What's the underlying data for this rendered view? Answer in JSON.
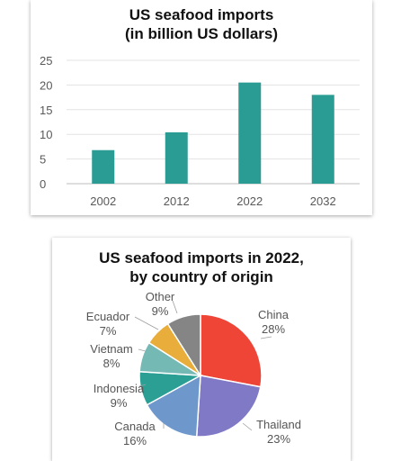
{
  "chart_data": [
    {
      "type": "bar",
      "title_lines": [
        "US seafood imports",
        "(in billion US dollars)"
      ],
      "categories": [
        "2002",
        "2012",
        "2022",
        "2032"
      ],
      "values": [
        6.8,
        10.4,
        20.5,
        18.0
      ],
      "ylim": [
        0,
        25
      ],
      "yticks": [
        "0",
        "5",
        "10",
        "15",
        "20",
        "25"
      ],
      "grid": true,
      "legend": "none",
      "bar_color": "#2a9c93"
    },
    {
      "type": "pie",
      "title_lines": [
        "US seafood imports in 2022,",
        "by country of origin"
      ],
      "slices": [
        {
          "label": "China",
          "value": 28,
          "value_label": "28%",
          "color": "#ef4537"
        },
        {
          "label": "Thailand",
          "value": 23,
          "value_label": "23%",
          "color": "#7f79c6"
        },
        {
          "label": "Canada",
          "value": 16,
          "value_label": "16%",
          "color": "#6e98cc"
        },
        {
          "label": "Indonesia",
          "value": 9,
          "value_label": "9%",
          "color": "#2c9f95"
        },
        {
          "label": "Vietnam",
          "value": 8,
          "value_label": "8%",
          "color": "#75b9b5"
        },
        {
          "label": "Ecuador",
          "value": 7,
          "value_label": "7%",
          "color": "#e8ad3b"
        },
        {
          "label": "Other",
          "value": 9,
          "value_label": "9%",
          "color": "#858585"
        }
      ]
    }
  ]
}
